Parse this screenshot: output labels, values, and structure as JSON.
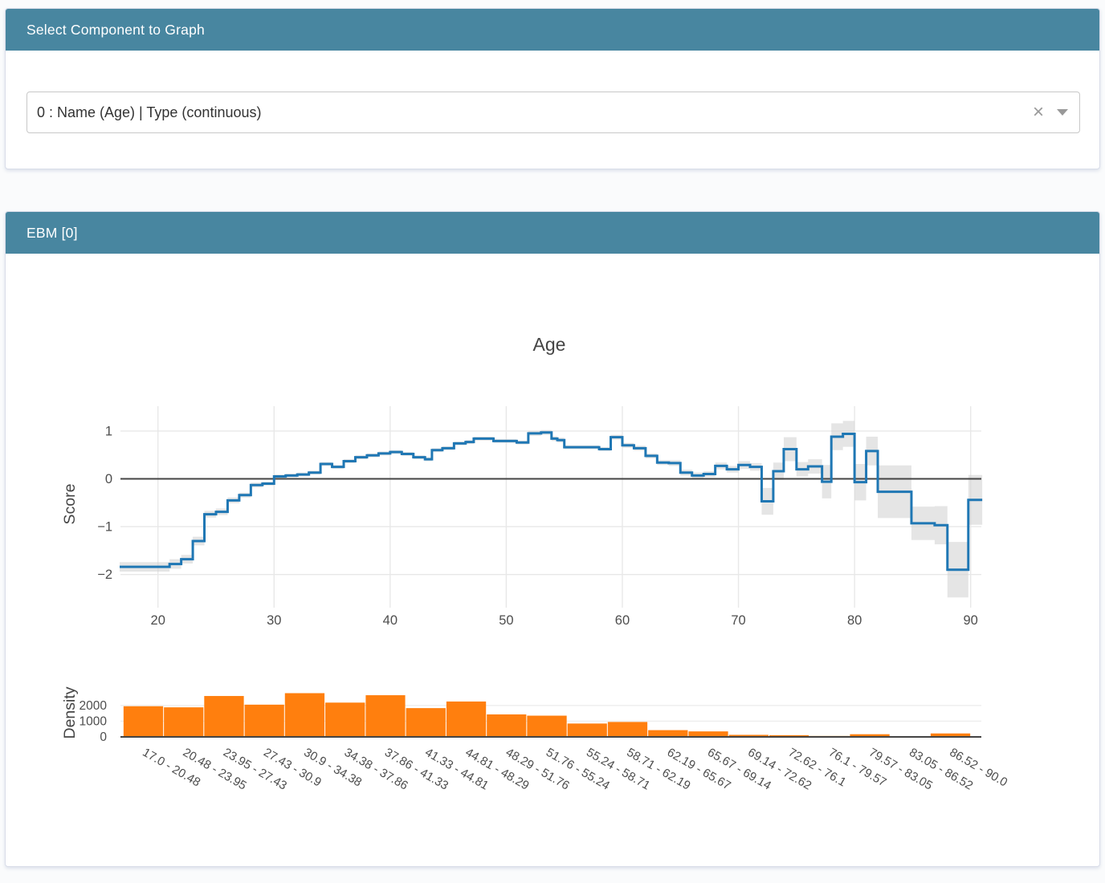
{
  "select_panel": {
    "title": "Select Component to Graph",
    "dropdown": {
      "value": "0 : Name (Age) | Type (continuous)",
      "clear_icon": "×"
    }
  },
  "ebm_panel": {
    "title": "EBM [0]"
  },
  "colors": {
    "header_teal": "#4886a0",
    "line_blue": "#1f77b4",
    "band_gray": "#d0d0d0",
    "bar_orange": "#ff7f0e",
    "grid": "#e8e8e8",
    "zero_line": "#444444",
    "tick_text": "#4d4d4d",
    "axis_title": "#444444"
  },
  "chart_data": [
    {
      "type": "line",
      "subtype": "step-with-error-band",
      "title": "Age",
      "xlabel": "",
      "ylabel": "Score",
      "xlim": [
        16.7,
        91
      ],
      "ylim": [
        -2.55,
        1.35
      ],
      "grid": true,
      "xticks": [
        {
          "v": 20,
          "label": "20"
        },
        {
          "v": 30,
          "label": "30"
        },
        {
          "v": 40,
          "label": "40"
        },
        {
          "v": 50,
          "label": "50"
        },
        {
          "v": 60,
          "label": "60"
        },
        {
          "v": 70,
          "label": "70"
        },
        {
          "v": 80,
          "label": "80"
        },
        {
          "v": 90,
          "label": "90"
        }
      ],
      "yticks": [
        {
          "v": 1,
          "label": "1"
        },
        {
          "v": 0,
          "label": "0"
        },
        {
          "v": -1,
          "label": "−1"
        },
        {
          "v": -2,
          "label": "−2"
        }
      ],
      "series": [
        {
          "name": "Score",
          "color": "#1f77b4",
          "steps": [
            {
              "x0": 16.7,
              "x1": 21,
              "y": -1.84,
              "ci": 0.1
            },
            {
              "x0": 21,
              "x1": 22,
              "y": -1.78,
              "ci": 0.1
            },
            {
              "x0": 22,
              "x1": 23,
              "y": -1.68,
              "ci": 0.09
            },
            {
              "x0": 23,
              "x1": 24,
              "y": -1.3,
              "ci": 0.09
            },
            {
              "x0": 24,
              "x1": 25,
              "y": -0.74,
              "ci": 0.07
            },
            {
              "x0": 25,
              "x1": 26,
              "y": -0.69,
              "ci": 0.07
            },
            {
              "x0": 26,
              "x1": 27,
              "y": -0.45,
              "ci": 0.06
            },
            {
              "x0": 27,
              "x1": 28,
              "y": -0.34,
              "ci": 0.05
            },
            {
              "x0": 28,
              "x1": 29,
              "y": -0.13,
              "ci": 0.05
            },
            {
              "x0": 29,
              "x1": 30,
              "y": -0.1,
              "ci": 0.04
            },
            {
              "x0": 30,
              "x1": 31,
              "y": 0.05,
              "ci": 0.04
            },
            {
              "x0": 31,
              "x1": 32,
              "y": 0.07,
              "ci": 0.04
            },
            {
              "x0": 32,
              "x1": 33,
              "y": 0.09,
              "ci": 0.04
            },
            {
              "x0": 33,
              "x1": 34,
              "y": 0.13,
              "ci": 0.04
            },
            {
              "x0": 34,
              "x1": 35,
              "y": 0.31,
              "ci": 0.04
            },
            {
              "x0": 35,
              "x1": 36,
              "y": 0.25,
              "ci": 0.04
            },
            {
              "x0": 36,
              "x1": 37,
              "y": 0.37,
              "ci": 0.04
            },
            {
              "x0": 37,
              "x1": 38,
              "y": 0.45,
              "ci": 0.04
            },
            {
              "x0": 38,
              "x1": 39,
              "y": 0.49,
              "ci": 0.04
            },
            {
              "x0": 39,
              "x1": 40,
              "y": 0.53,
              "ci": 0.04
            },
            {
              "x0": 40,
              "x1": 41,
              "y": 0.56,
              "ci": 0.04
            },
            {
              "x0": 41,
              "x1": 42,
              "y": 0.52,
              "ci": 0.04
            },
            {
              "x0": 42,
              "x1": 43,
              "y": 0.45,
              "ci": 0.04
            },
            {
              "x0": 43,
              "x1": 43.6,
              "y": 0.41,
              "ci": 0.04
            },
            {
              "x0": 43.6,
              "x1": 44.5,
              "y": 0.6,
              "ci": 0.04
            },
            {
              "x0": 44.5,
              "x1": 45.5,
              "y": 0.64,
              "ci": 0.04
            },
            {
              "x0": 45.5,
              "x1": 46.5,
              "y": 0.74,
              "ci": 0.04
            },
            {
              "x0": 46.5,
              "x1": 47.2,
              "y": 0.77,
              "ci": 0.04
            },
            {
              "x0": 47.2,
              "x1": 48.9,
              "y": 0.84,
              "ci": 0.04
            },
            {
              "x0": 48.9,
              "x1": 50.9,
              "y": 0.79,
              "ci": 0.04
            },
            {
              "x0": 50.9,
              "x1": 51.9,
              "y": 0.76,
              "ci": 0.04
            },
            {
              "x0": 51.9,
              "x1": 53,
              "y": 0.95,
              "ci": 0.05
            },
            {
              "x0": 53,
              "x1": 53.9,
              "y": 0.97,
              "ci": 0.05
            },
            {
              "x0": 53.9,
              "x1": 54.4,
              "y": 0.84,
              "ci": 0.05
            },
            {
              "x0": 54.4,
              "x1": 55,
              "y": 0.81,
              "ci": 0.05
            },
            {
              "x0": 55,
              "x1": 58,
              "y": 0.66,
              "ci": 0.04
            },
            {
              "x0": 58,
              "x1": 59,
              "y": 0.62,
              "ci": 0.04
            },
            {
              "x0": 59,
              "x1": 60,
              "y": 0.87,
              "ci": 0.05
            },
            {
              "x0": 60,
              "x1": 61,
              "y": 0.7,
              "ci": 0.05
            },
            {
              "x0": 61,
              "x1": 62,
              "y": 0.64,
              "ci": 0.05
            },
            {
              "x0": 62,
              "x1": 63,
              "y": 0.48,
              "ci": 0.05
            },
            {
              "x0": 63,
              "x1": 64,
              "y": 0.34,
              "ci": 0.05
            },
            {
              "x0": 64,
              "x1": 65,
              "y": 0.33,
              "ci": 0.06
            },
            {
              "x0": 65,
              "x1": 66,
              "y": 0.13,
              "ci": 0.06
            },
            {
              "x0": 66,
              "x1": 67,
              "y": 0.07,
              "ci": 0.06
            },
            {
              "x0": 67,
              "x1": 68,
              "y": 0.1,
              "ci": 0.06
            },
            {
              "x0": 68,
              "x1": 69,
              "y": 0.27,
              "ci": 0.07
            },
            {
              "x0": 69,
              "x1": 70,
              "y": 0.2,
              "ci": 0.07
            },
            {
              "x0": 70,
              "x1": 71,
              "y": 0.29,
              "ci": 0.08
            },
            {
              "x0": 71,
              "x1": 72,
              "y": 0.25,
              "ci": 0.08
            },
            {
              "x0": 72,
              "x1": 73,
              "y": -0.47,
              "ci": 0.28
            },
            {
              "x0": 73,
              "x1": 73.9,
              "y": 0.16,
              "ci": 0.18
            },
            {
              "x0": 73.9,
              "x1": 75,
              "y": 0.62,
              "ci": 0.25
            },
            {
              "x0": 75,
              "x1": 76,
              "y": 0.2,
              "ci": 0.15
            },
            {
              "x0": 76,
              "x1": 77.2,
              "y": 0.26,
              "ci": 0.15
            },
            {
              "x0": 77.2,
              "x1": 78,
              "y": -0.06,
              "ci": 0.35
            },
            {
              "x0": 78,
              "x1": 79,
              "y": 0.88,
              "ci": 0.28
            },
            {
              "x0": 79,
              "x1": 80,
              "y": 0.94,
              "ci": 0.27
            },
            {
              "x0": 80,
              "x1": 81,
              "y": -0.07,
              "ci": 0.38
            },
            {
              "x0": 81,
              "x1": 82,
              "y": 0.58,
              "ci": 0.3
            },
            {
              "x0": 82,
              "x1": 84.9,
              "y": -0.27,
              "ci": 0.55
            },
            {
              "x0": 84.9,
              "x1": 86.9,
              "y": -0.93,
              "ci": 0.35
            },
            {
              "x0": 86.9,
              "x1": 88,
              "y": -0.97,
              "ci": 0.4
            },
            {
              "x0": 88,
              "x1": 89.8,
              "y": -1.9,
              "ci": 0.58
            },
            {
              "x0": 89.8,
              "x1": 91,
              "y": -0.44,
              "ci": 0.52
            }
          ]
        }
      ]
    },
    {
      "type": "bar",
      "title": "",
      "ylabel": "Density",
      "bar_color": "#ff7f0e",
      "yticks": [
        {
          "v": 0,
          "label": "0"
        },
        {
          "v": 1000,
          "label": "1000"
        },
        {
          "v": 2000,
          "label": "2000"
        }
      ],
      "bin_edges": [
        17.0,
        20.48,
        23.95,
        27.43,
        30.9,
        34.38,
        37.86,
        41.33,
        44.81,
        48.29,
        51.76,
        55.24,
        58.71,
        62.19,
        65.67,
        69.14,
        72.62,
        76.1,
        79.57,
        83.05,
        86.52,
        90.0
      ],
      "categories": [
        "17.0 - 20.48",
        "20.48 - 23.95",
        "23.95 - 27.43",
        "27.43 - 30.9",
        "30.9 - 34.38",
        "34.38 - 37.86",
        "37.86 - 41.33",
        "41.33 - 44.81",
        "44.81 - 48.29",
        "48.29 - 51.76",
        "51.76 - 55.24",
        "55.24 - 58.71",
        "58.71 - 62.19",
        "62.19 - 65.67",
        "65.67 - 69.14",
        "69.14 - 72.62",
        "72.62 - 76.1",
        "76.1 - 79.57",
        "79.57 - 83.05",
        "83.05 - 86.52",
        "86.52 - 90.0"
      ],
      "values": [
        1950,
        1880,
        2600,
        2050,
        2780,
        2180,
        2650,
        1830,
        2250,
        1430,
        1350,
        850,
        950,
        430,
        350,
        130,
        110,
        60,
        170,
        25,
        220
      ]
    }
  ]
}
